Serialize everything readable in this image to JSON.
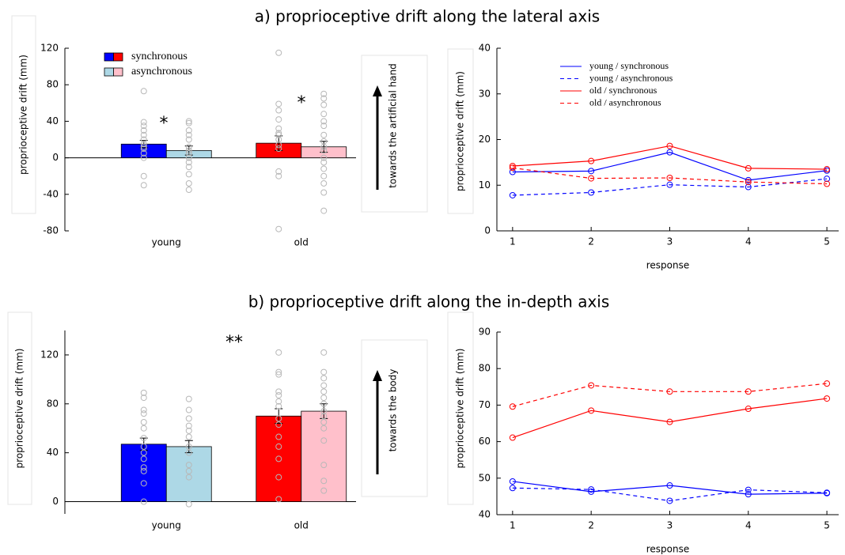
{
  "section_titles": [
    "a) proprioceptive drift along the lateral axis",
    "b) proprioceptive drift along the in-depth axis"
  ],
  "chart_data": [
    {
      "type": "bar",
      "ylabel": "proprioceptive drift (mm)",
      "arrow_label": "towards the artificial hand",
      "categories": [
        "young",
        "old"
      ],
      "ylim": [
        -80,
        120
      ],
      "yticks": [
        -80,
        -40,
        0,
        40,
        80,
        120
      ],
      "annotations": [
        "*",
        "*"
      ],
      "legend": true,
      "series": [
        {
          "name": "synchronous",
          "colors": [
            "#0000ff",
            "#ff0000"
          ],
          "values": [
            15,
            16
          ],
          "errors": [
            4,
            8
          ],
          "points": [
            [
              73,
              39,
              35,
              30,
              25,
              20,
              15,
              12,
              10,
              5,
              0,
              -20,
              -30
            ],
            [
              115,
              59,
              52,
              42,
              32,
              27,
              25,
              20,
              14,
              10,
              -15,
              -20,
              -78
            ]
          ]
        },
        {
          "name": "asynchronous",
          "colors": [
            "#add8e6",
            "#ffc0cb"
          ],
          "values": [
            8,
            12
          ],
          "errors": [
            5,
            6
          ],
          "points": [
            [
              40,
              38,
              30,
              25,
              20,
              12,
              8,
              5,
              0,
              -5,
              -10,
              -18,
              -28,
              -35
            ],
            [
              70,
              65,
              58,
              48,
              40,
              35,
              25,
              18,
              12,
              8,
              0,
              -5,
              -12,
              -20,
              -28,
              -38,
              -58
            ]
          ]
        }
      ]
    },
    {
      "type": "line",
      "ylabel": "proprioceptive drift (mm)",
      "xlabel": "response",
      "legend": true,
      "x": [
        1,
        2,
        3,
        4,
        5
      ],
      "xlim": [
        0.8,
        5.15
      ],
      "xticks": [
        1,
        2,
        3,
        4,
        5
      ],
      "ylim": [
        0,
        40
      ],
      "yticks": [
        0,
        10,
        20,
        30,
        40
      ],
      "series": [
        {
          "name": "young / synchronous",
          "color": "#0000ff",
          "dashed": false,
          "values": [
            12.9,
            13.1,
            17.2,
            11.1,
            13.2
          ]
        },
        {
          "name": "young / asynchronous",
          "color": "#0000ff",
          "dashed": true,
          "values": [
            7.8,
            8.4,
            10.1,
            9.6,
            11.4
          ]
        },
        {
          "name": "old / synchronous",
          "color": "#ff0000",
          "dashed": false,
          "values": [
            14.2,
            15.3,
            18.6,
            13.7,
            13.5
          ]
        },
        {
          "name": "old / asynchronous",
          "color": "#ff0000",
          "dashed": true,
          "values": [
            13.8,
            11.5,
            11.6,
            10.7,
            10.3
          ]
        }
      ]
    },
    {
      "type": "bar",
      "ylabel": "proprioceptive drift (mm)",
      "arrow_label": "towards the body",
      "categories": [
        "young",
        "old"
      ],
      "ylim": [
        -10,
        140
      ],
      "yticks": [
        0,
        40,
        80,
        120
      ],
      "annotations": [
        "**"
      ],
      "legend": false,
      "series": [
        {
          "name": "synchronous",
          "colors": [
            "#0000ff",
            "#ff0000"
          ],
          "values": [
            47,
            70
          ],
          "errors": [
            5,
            6
          ],
          "points": [
            [
              89,
              85,
              75,
              72,
              65,
              60,
              52,
              45,
              40,
              35,
              28,
              25,
              15,
              0
            ],
            [
              122,
              106,
              104,
              90,
              87,
              82,
              78,
              68,
              63,
              53,
              45,
              35,
              20,
              2
            ]
          ]
        },
        {
          "name": "asynchronous",
          "colors": [
            "#add8e6",
            "#ffc0cb"
          ],
          "values": [
            45,
            74
          ],
          "errors": [
            5,
            6
          ],
          "points": [
            [
              84,
              75,
              68,
              62,
              58,
              53,
              45,
              40,
              30,
              25,
              20,
              -2
            ],
            [
              122,
              106,
              101,
              95,
              90,
              85,
              80,
              74,
              70,
              65,
              60,
              50,
              30,
              17,
              9
            ]
          ]
        }
      ]
    },
    {
      "type": "line",
      "ylabel": "proprioceptive drift (mm)",
      "xlabel": "response",
      "legend": false,
      "x": [
        1,
        2,
        3,
        4,
        5
      ],
      "xlim": [
        0.8,
        5.15
      ],
      "xticks": [
        1,
        2,
        3,
        4,
        5
      ],
      "ylim": [
        40,
        90
      ],
      "yticks": [
        40,
        50,
        60,
        70,
        80,
        90
      ],
      "series": [
        {
          "name": "young / synchronous",
          "color": "#0000ff",
          "dashed": false,
          "values": [
            49.1,
            46.3,
            48.0,
            45.6,
            45.9
          ]
        },
        {
          "name": "young / asynchronous",
          "color": "#0000ff",
          "dashed": true,
          "values": [
            47.3,
            46.9,
            43.8,
            46.8,
            46.0
          ]
        },
        {
          "name": "old / synchronous",
          "color": "#ff0000",
          "dashed": false,
          "values": [
            61.1,
            68.5,
            65.4,
            69.0,
            71.8
          ]
        },
        {
          "name": "old / asynchronous",
          "color": "#ff0000",
          "dashed": true,
          "values": [
            69.6,
            75.4,
            73.7,
            73.7,
            75.9
          ]
        }
      ]
    }
  ]
}
